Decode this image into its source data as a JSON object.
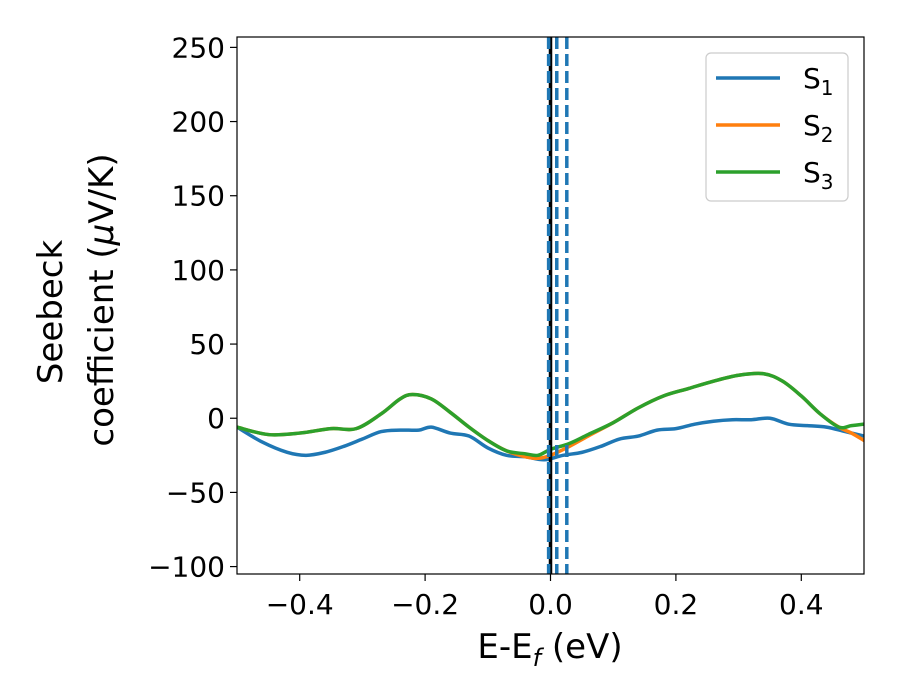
{
  "chart_data": {
    "type": "line",
    "title": "",
    "xlabel": "E-E",
    "xlabel_sub": "f",
    "xlabel_unit": " (eV)",
    "ylabel_line1": "Seebeck",
    "ylabel_line2": "coefficient  (",
    "ylabel_mu": "μ",
    "ylabel_unit": "V/K)",
    "xlim": [
      -0.5,
      0.5
    ],
    "ylim": [
      -105,
      257
    ],
    "xticks": [
      -0.4,
      -0.2,
      0.0,
      0.2,
      0.4
    ],
    "xtick_labels": [
      "−0.4",
      "−0.2",
      "0.0",
      "0.2",
      "0.4"
    ],
    "yticks": [
      -100,
      -50,
      0,
      50,
      100,
      150,
      200,
      250
    ],
    "ytick_labels": [
      "−100",
      "−50",
      "0",
      "50",
      "100",
      "150",
      "200",
      "250"
    ],
    "grid": false,
    "legend_position": "top-right",
    "series": [
      {
        "name": "S",
        "name_sub": "1",
        "color": "#1f77b4",
        "x": [
          -0.5,
          -0.46,
          -0.42,
          -0.39,
          -0.36,
          -0.33,
          -0.3,
          -0.27,
          -0.24,
          -0.21,
          -0.19,
          -0.16,
          -0.13,
          -0.1,
          -0.07,
          -0.04,
          -0.01,
          0.02,
          0.05,
          0.08,
          0.11,
          0.14,
          0.17,
          0.2,
          0.23,
          0.26,
          0.29,
          0.32,
          0.35,
          0.38,
          0.41,
          0.44,
          0.47,
          0.5
        ],
        "y": [
          -6,
          -16,
          -23,
          -25,
          -23,
          -19,
          -14,
          -9,
          -8,
          -8,
          -6,
          -10,
          -12,
          -20,
          -25,
          -26,
          -28,
          -25,
          -23,
          -19,
          -14,
          -12,
          -8,
          -7,
          -4,
          -2,
          -1,
          -1,
          0,
          -4,
          -5,
          -6,
          -9,
          -12
        ]
      },
      {
        "name": "S",
        "name_sub": "2",
        "color": "#ff7f0e",
        "x": [
          -0.5,
          -0.45,
          -0.4,
          -0.35,
          -0.31,
          -0.27,
          -0.24,
          -0.22,
          -0.19,
          -0.16,
          -0.13,
          -0.1,
          -0.07,
          -0.04,
          -0.02,
          0.0,
          0.03,
          0.06,
          0.1,
          0.14,
          0.18,
          0.22,
          0.26,
          0.3,
          0.34,
          0.37,
          0.4,
          0.43,
          0.46,
          0.48,
          0.5
        ],
        "y": [
          -6,
          -11,
          -10,
          -7,
          -7,
          3,
          13,
          16,
          13,
          4,
          -6,
          -15,
          -22,
          -26,
          -27,
          -25,
          -19,
          -12,
          -3,
          7,
          15,
          20,
          25,
          29,
          30,
          25,
          15,
          3,
          -6,
          -10,
          -15
        ]
      },
      {
        "name": "S",
        "name_sub": "3",
        "color": "#2ca02c",
        "x": [
          -0.5,
          -0.45,
          -0.4,
          -0.35,
          -0.31,
          -0.27,
          -0.24,
          -0.22,
          -0.19,
          -0.16,
          -0.13,
          -0.1,
          -0.07,
          -0.04,
          -0.02,
          0.0,
          0.03,
          0.06,
          0.1,
          0.14,
          0.18,
          0.22,
          0.26,
          0.3,
          0.34,
          0.37,
          0.4,
          0.43,
          0.46,
          0.48,
          0.5
        ],
        "y": [
          -6,
          -11,
          -10,
          -7,
          -7,
          3,
          13,
          16,
          13,
          4,
          -6,
          -15,
          -22,
          -24,
          -25,
          -21,
          -17,
          -11,
          -3,
          7,
          15,
          20,
          25,
          29,
          30,
          25,
          15,
          3,
          -6,
          -5,
          -4
        ]
      }
    ],
    "vlines": [
      {
        "x": 0.0,
        "color": "#000000",
        "style": "solid"
      },
      {
        "x": -0.003,
        "color": "#1f77b4",
        "style": "dashed"
      },
      {
        "x": 0.01,
        "color": "#1f77b4",
        "style": "dashed"
      },
      {
        "x": 0.026,
        "color": "#1f77b4",
        "style": "dashed"
      }
    ]
  }
}
